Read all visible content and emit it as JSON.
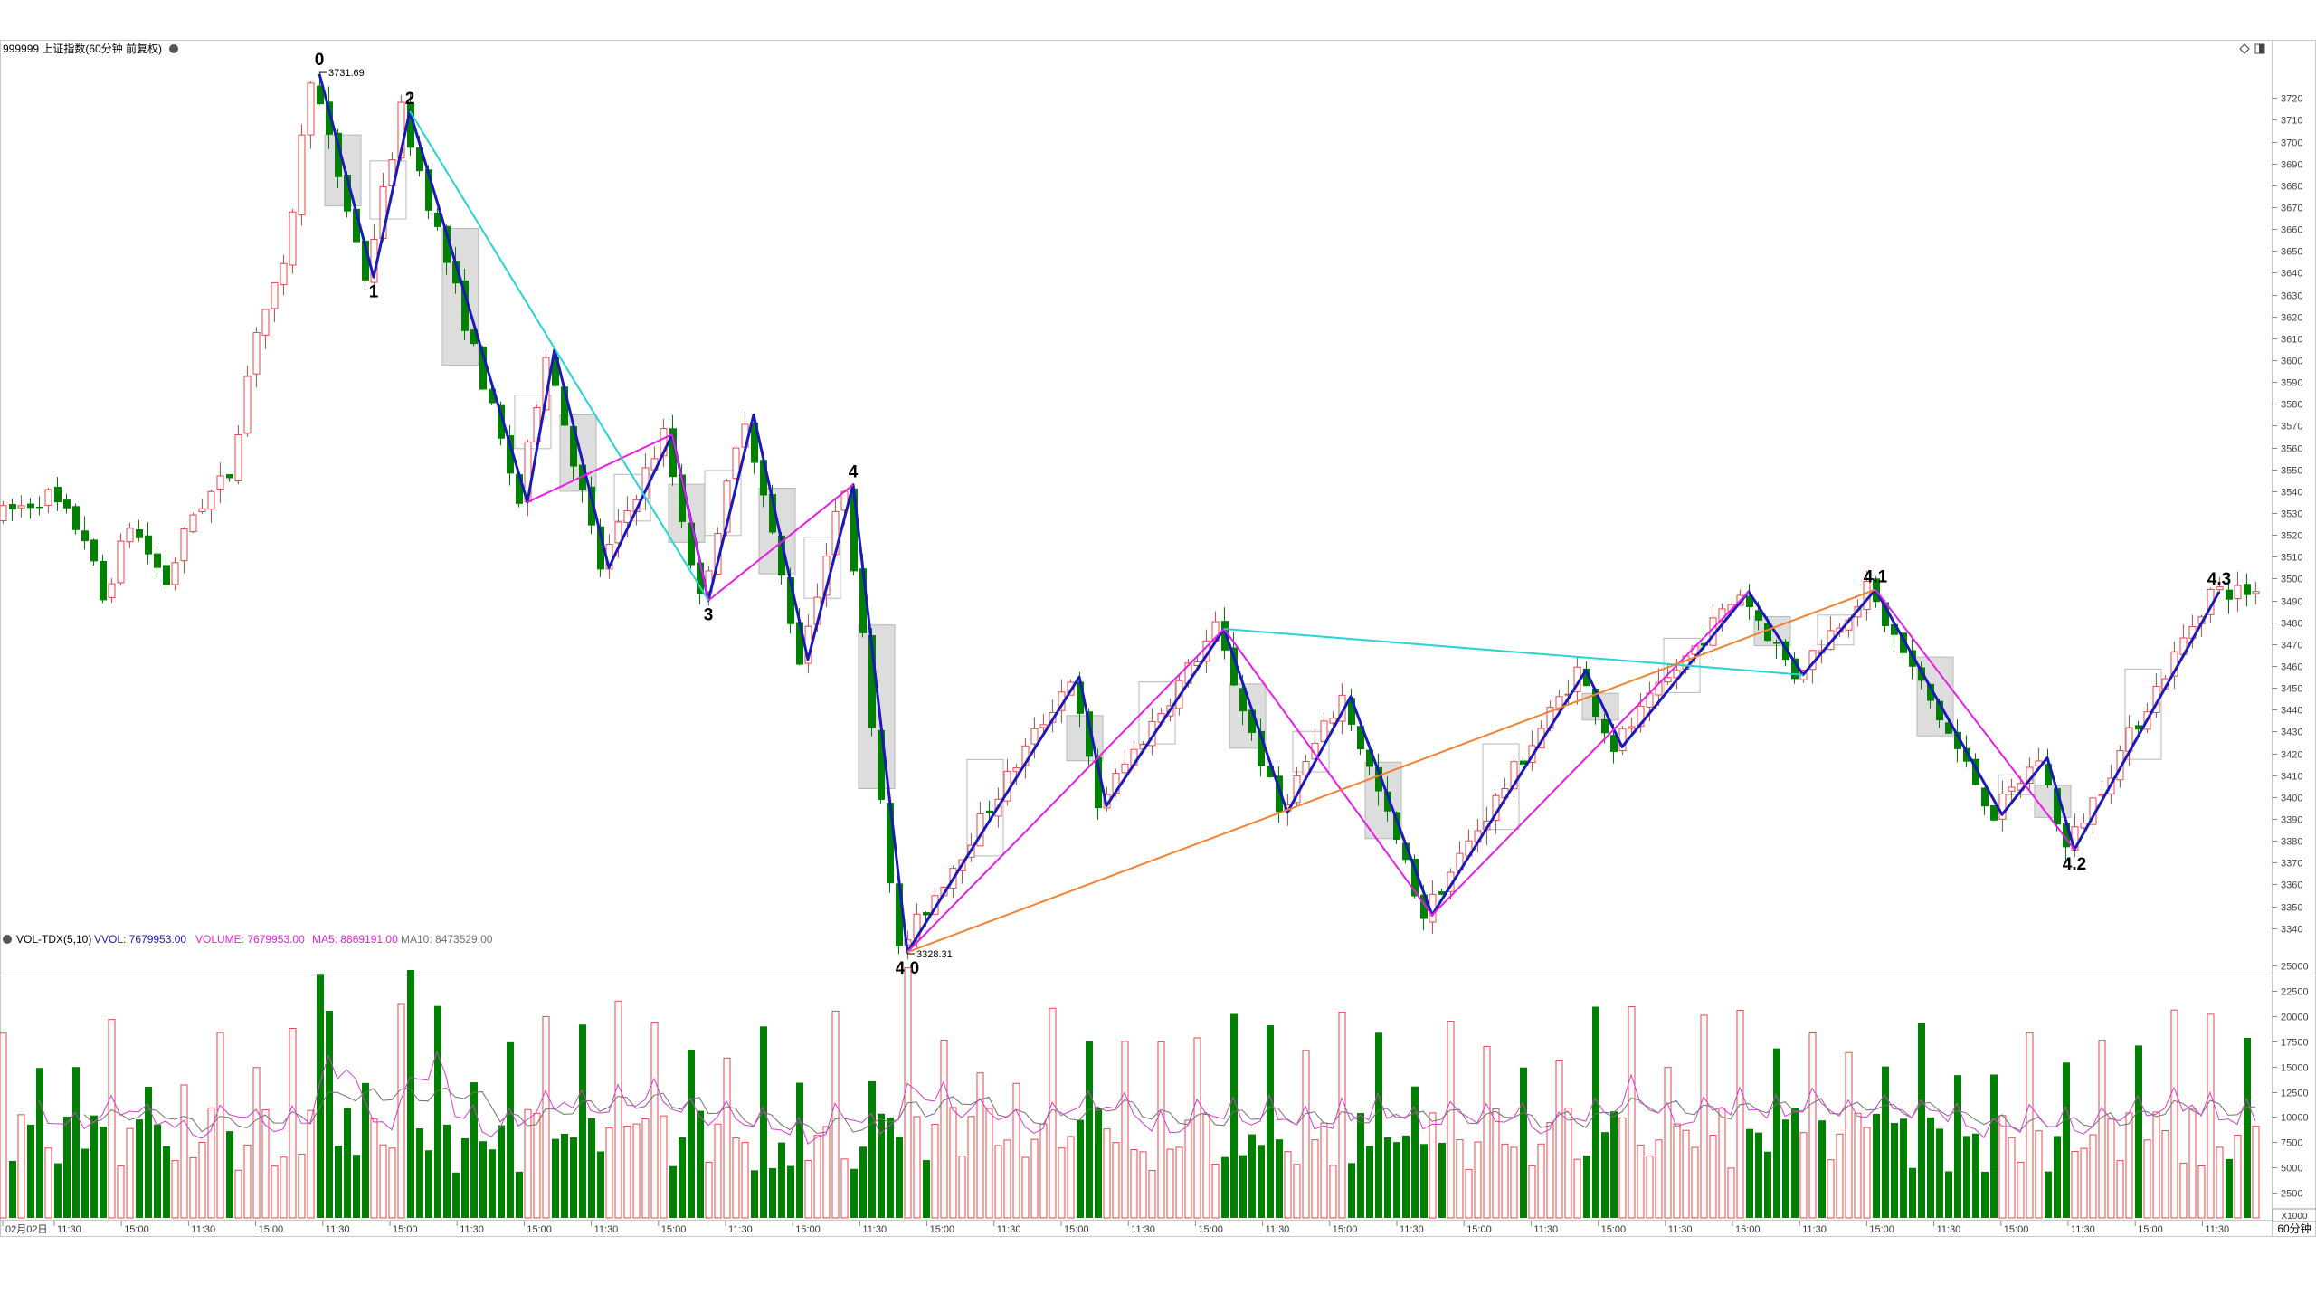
{
  "window": {
    "title": "999999 上证指数(60分钟 前复权)",
    "period_button": "60分钟",
    "zoom_label": "X1000",
    "top_right_icons": [
      "diamond-icon",
      "panel-icon"
    ]
  },
  "colors": {
    "up": "#e8454a",
    "down": "#008000",
    "zz_blue": "#1a1ab8",
    "zz_magenta": "#e61ee6",
    "zz_cyan": "#27d3d3",
    "zz_orange": "#f08232",
    "box_gray": "#d8d8d8",
    "ma5": "#d040d0",
    "ma10": "#707070"
  },
  "chart_data": [
    {
      "type": "candlestick",
      "title": "999999 上证指数(60分钟 前复权)",
      "price_axis": {
        "ylim": [
          3325,
          3740
        ],
        "ticks": [
          3340,
          3350,
          3360,
          3370,
          3380,
          3390,
          3400,
          3410,
          3420,
          3430,
          3440,
          3450,
          3460,
          3470,
          3480,
          3490,
          3500,
          3510,
          3520,
          3530,
          3540,
          3550,
          3560,
          3570,
          3580,
          3590,
          3600,
          3610,
          3620,
          3630,
          3640,
          3650,
          3660,
          3670,
          3680,
          3690,
          3700,
          3710,
          3720
        ]
      },
      "x_labels": [
        "02月02日",
        "11:30",
        "15:00",
        "11:30",
        "15:00",
        "11:30",
        "15:00",
        "11:30",
        "15:00",
        "11:30",
        "15:00",
        "11:30",
        "15:00",
        "11:30",
        "15:00",
        "11:30",
        "15:00",
        "11:30",
        "15:00",
        "11:30",
        "15:00",
        "11:30",
        "15:00",
        "11:30",
        "15:00",
        "11:30",
        "15:00",
        "11:30",
        "15:00",
        "11:30",
        "15:00",
        "11:30",
        "15:00",
        "11:30"
      ],
      "price_annotations": [
        {
          "label": "3731.69",
          "bar": 35,
          "value": 3731.69
        },
        {
          "label": "3328.31",
          "bar": 100,
          "value": 3328.31
        }
      ],
      "wave_labels": [
        {
          "label": "0",
          "bar": 35,
          "value": 3731.69,
          "pos": "above"
        },
        {
          "label": "1",
          "bar": 41,
          "value": 3638,
          "pos": "below"
        },
        {
          "label": "2",
          "bar": 45,
          "value": 3714,
          "pos": "above"
        },
        {
          "label": "3",
          "bar": 78,
          "value": 3490,
          "pos": "below"
        },
        {
          "label": "4",
          "bar": 94,
          "value": 3543,
          "pos": "above"
        },
        {
          "label": "4.0",
          "bar": 100,
          "value": 3328.31,
          "pos": "below"
        },
        {
          "label": "4.1",
          "bar": 207,
          "value": 3495,
          "pos": "above"
        },
        {
          "label": "4.2",
          "bar": 229,
          "value": 3376,
          "pos": "below"
        },
        {
          "label": "4.3",
          "bar": 245,
          "value": 3494,
          "pos": "above"
        }
      ],
      "zigzags": [
        {
          "color": "blue",
          "width": 3,
          "points": [
            [
              35,
              3731
            ],
            [
              41,
              3638
            ],
            [
              45,
              3714
            ],
            [
              58,
              3535
            ],
            [
              61,
              3605
            ],
            [
              67,
              3505
            ],
            [
              74,
              3566
            ],
            [
              78,
              3490
            ],
            [
              83,
              3575
            ],
            [
              89,
              3463
            ],
            [
              94,
              3543
            ],
            [
              100,
              3329
            ],
            [
              119,
              3455
            ],
            [
              122,
              3396
            ],
            [
              135,
              3477
            ],
            [
              142,
              3393
            ],
            [
              149,
              3446
            ],
            [
              158,
              3346
            ],
            [
              175,
              3458
            ],
            [
              179,
              3423
            ],
            [
              193,
              3494
            ],
            [
              199,
              3456
            ],
            [
              207,
              3495
            ],
            [
              221,
              3392
            ],
            [
              226,
              3418
            ],
            [
              229,
              3376
            ],
            [
              245,
              3494
            ]
          ]
        },
        {
          "color": "magenta",
          "width": 2,
          "points": [
            [
              58,
              3535
            ],
            [
              74,
              3566
            ],
            [
              78,
              3490
            ],
            [
              94,
              3543
            ]
          ]
        },
        {
          "color": "magenta",
          "width": 2,
          "points": [
            [
              100,
              3329
            ],
            [
              135,
              3477
            ],
            [
              158,
              3346
            ],
            [
              193,
              3494
            ]
          ]
        },
        {
          "color": "magenta",
          "width": 2,
          "points": [
            [
              207,
              3495
            ],
            [
              229,
              3376
            ]
          ]
        },
        {
          "color": "cyan",
          "width": 2,
          "points": [
            [
              45,
              3714
            ],
            [
              78,
              3490
            ]
          ]
        },
        {
          "color": "cyan",
          "width": 2,
          "points": [
            [
              135,
              3477
            ],
            [
              199,
              3456
            ]
          ]
        },
        {
          "color": "orange",
          "width": 2,
          "points": [
            [
              100,
              3329
            ],
            [
              207,
              3495
            ]
          ]
        }
      ]
    },
    {
      "type": "bar",
      "indicator": "VOL-TDX(5,10)",
      "legend": {
        "name": "VOL-TDX(5,10)",
        "vvol": "VVOL: 7679953.00",
        "volume": "VOLUME: 7679953.00",
        "ma5": "MA5: 8869191.00",
        "ma10": "MA10: 8473529.00"
      },
      "ylim": [
        0,
        26000
      ],
      "ticks": [
        2500,
        5000,
        7500,
        10000,
        12500,
        15000,
        17500,
        20000,
        22500,
        25000
      ]
    }
  ]
}
